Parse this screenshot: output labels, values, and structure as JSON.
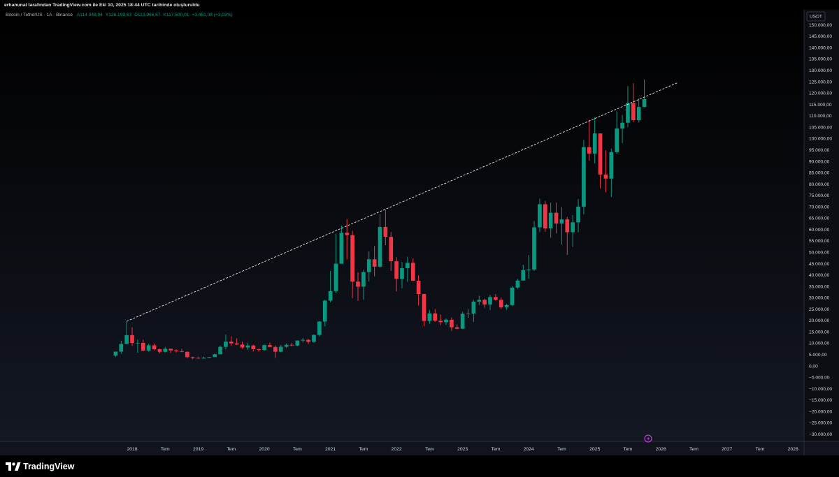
{
  "header": "erhanunal tarafından TradingView.com ile Eki 10, 2025 18:44 UTC tarihinde oluşturuldu",
  "footer": "TradingView",
  "chart_data": {
    "type": "candlestick",
    "title": "Bitcoin / TetherUS · 1A · Binance",
    "legend_values": [
      "A114.048,94",
      "Y126.199,63",
      "D113.966,67",
      "K117.500,01",
      "+3.451,08 (+3,03%)"
    ],
    "currency": "USDT",
    "up_color": "#089981",
    "down_color": "#f23645",
    "grid": false,
    "x": [
      "2017-10",
      "2017-11",
      "2017-12",
      "2018-01",
      "2018-02",
      "2018-03",
      "2018-04",
      "2018-05",
      "2018-06",
      "2018-07",
      "2018-08",
      "2018-09",
      "2018-10",
      "2018-11",
      "2018-12",
      "2019-01",
      "2019-02",
      "2019-03",
      "2019-04",
      "2019-05",
      "2019-06",
      "2019-07",
      "2019-08",
      "2019-09",
      "2019-10",
      "2019-11",
      "2019-12",
      "2020-01",
      "2020-02",
      "2020-03",
      "2020-04",
      "2020-05",
      "2020-06",
      "2020-07",
      "2020-08",
      "2020-09",
      "2020-10",
      "2020-11",
      "2020-12",
      "2021-01",
      "2021-02",
      "2021-03",
      "2021-04",
      "2021-05",
      "2021-06",
      "2021-07",
      "2021-08",
      "2021-09",
      "2021-10",
      "2021-11",
      "2021-12",
      "2022-01",
      "2022-02",
      "2022-03",
      "2022-04",
      "2022-05",
      "2022-06",
      "2022-07",
      "2022-08",
      "2022-09",
      "2022-10",
      "2022-11",
      "2022-12",
      "2023-01",
      "2023-02",
      "2023-03",
      "2023-04",
      "2023-05",
      "2023-06",
      "2023-07",
      "2023-08",
      "2023-09",
      "2023-10",
      "2023-11",
      "2023-12",
      "2024-01",
      "2024-02",
      "2024-03",
      "2024-04",
      "2024-05",
      "2024-06",
      "2024-07",
      "2024-08",
      "2024-09",
      "2024-10",
      "2024-11",
      "2024-12",
      "2025-01",
      "2025-02",
      "2025-03",
      "2025-04",
      "2025-05",
      "2025-06",
      "2025-07",
      "2025-08",
      "2025-09",
      "2025-10"
    ],
    "open": [
      4690,
      6463,
      9838,
      13716,
      10285,
      10326,
      6922,
      9246,
      7485,
      6391,
      7735,
      7011,
      6626,
      6369,
      4041,
      3701,
      3434,
      3815,
      4103,
      5321,
      8574,
      10854,
      10082,
      9592,
      8284,
      9152,
      7546,
      7195,
      9352,
      8523,
      6412,
      8620,
      9448,
      9138,
      11335,
      11650,
      10776,
      13791,
      19695,
      28923,
      33092,
      45134,
      58739,
      57697,
      37253,
      35045,
      41461,
      47100,
      43820,
      61300,
      56950,
      46216,
      38466,
      43160,
      45510,
      37630,
      31801,
      19942,
      23296,
      20048,
      19422,
      20490,
      17165,
      16541,
      23125,
      23141,
      28465,
      29233,
      27210,
      30472,
      29232,
      25941,
      26962,
      34640,
      37723,
      42283,
      42580,
      61131,
      71280,
      60672,
      67540,
      62772,
      64629,
      58974,
      63327,
      70216,
      96408,
      93577,
      102430,
      84350,
      82550,
      94172,
      104591,
      107135,
      115764,
      108246,
      114048.94
    ],
    "high": [
      6470,
      11300,
      19798,
      17176,
      11786,
      11700,
      9759,
      10020,
      7754,
      8491,
      7750,
      7410,
      7680,
      6589,
      4312,
      4069,
      4198,
      4140,
      5600,
      9074,
      13970,
      13200,
      12330,
      10905,
      10370,
      9505,
      7750,
      9578,
      10500,
      9189,
      9460,
      10067,
      10380,
      11444,
      12468,
      12050,
      14100,
      19863,
      29300,
      41950,
      58352,
      61844,
      64854,
      59600,
      41330,
      42448,
      50500,
      52920,
      67000,
      69000,
      59053,
      47990,
      45821,
      48189,
      47444,
      40023,
      31982,
      24668,
      25211,
      22800,
      21085,
      21480,
      18387,
      23960,
      25250,
      29185,
      31000,
      29820,
      31432,
      31804,
      30244,
      27483,
      35280,
      38450,
      44700,
      48969,
      63913,
      73777,
      72797,
      71979,
      71959,
      70079,
      65660,
      66498,
      73620,
      99588,
      108353,
      109588,
      102500,
      95000,
      95758,
      111980,
      110530,
      123218,
      124474,
      117900,
      126199.63
    ],
    "low": [
      4110,
      5500,
      9750,
      9035,
      6000,
      6600,
      6430,
      7032,
      5750,
      6070,
      5880,
      6100,
      6205,
      3652,
      3156,
      3349,
      3373,
      3690,
      4067,
      5321,
      7444,
      9071,
      9320,
      7710,
      7300,
      6515,
      6435,
      6871,
      8445,
      3782,
      6150,
      8117,
      8833,
      8893,
      10518,
      9825,
      10375,
      13195,
      17572,
      28130,
      32296,
      45000,
      47044,
      30000,
      28805,
      29278,
      37332,
      39600,
      43283,
      53256,
      42000,
      32917,
      34322,
      37155,
      37578,
      26700,
      17622,
      18781,
      19520,
      18125,
      18190,
      15476,
      16256,
      16500,
      21351,
      19549,
      26942,
      25811,
      24800,
      28861,
      25166,
      24901,
      26538,
      34097,
      37618,
      38555,
      41884,
      59005,
      59120,
      56552,
      58402,
      53485,
      49000,
      52550,
      58946,
      66835,
      90500,
      89256,
      78258,
      76606,
      74508,
      93377,
      98200,
      105100,
      107350,
      107255,
      113966.67
    ],
    "close": [
      6463,
      9838,
      13716,
      10285,
      10326,
      6923,
      9246,
      7485,
      6391,
      7730,
      7011,
      6626,
      6371,
      4041,
      3702,
      3434,
      3814,
      4103,
      5321,
      8574,
      10854,
      10082,
      9592,
      8284,
      9152,
      7546,
      7196,
      9352,
      8523,
      6410,
      8620,
      9448,
      9138,
      11335,
      11650,
      10776,
      13791,
      19695,
      28923,
      33092,
      45135,
      58740,
      57694,
      37253,
      35045,
      41461,
      47100,
      43824,
      61300,
      56950,
      46216,
      38466,
      43160,
      45510,
      37630,
      31801,
      19942,
      23293,
      20050,
      19423,
      20490,
      17164,
      16542,
      23125,
      23141,
      28465,
      29233,
      27210,
      30472,
      29232,
      25941,
      26963,
      34639,
      37723,
      42283,
      42580,
      61130,
      71280,
      60672,
      67540,
      62772,
      64628,
      58974,
      63328,
      70215,
      96408,
      93577,
      102429,
      84350,
      82550,
      94172,
      104591,
      107135,
      115764,
      108246,
      114048.94,
      117500.01
    ],
    "trendline": {
      "x": [
        "2017-12",
        "2026-04"
      ],
      "y": [
        19798,
        124700
      ],
      "color": "#ffffff"
    },
    "xlim": [
      "2016-01",
      "2028-03"
    ],
    "xticks": [
      {
        "value": "2018-01",
        "label": "2018"
      },
      {
        "value": "2018-07",
        "label": "Tem"
      },
      {
        "value": "2019-01",
        "label": "2019"
      },
      {
        "value": "2019-07",
        "label": "Tem"
      },
      {
        "value": "2020-01",
        "label": "2020"
      },
      {
        "value": "2020-07",
        "label": "Tem"
      },
      {
        "value": "2021-01",
        "label": "2021"
      },
      {
        "value": "2021-07",
        "label": "Tem"
      },
      {
        "value": "2022-01",
        "label": "2022"
      },
      {
        "value": "2022-07",
        "label": "Tem"
      },
      {
        "value": "2023-01",
        "label": "2023"
      },
      {
        "value": "2023-07",
        "label": "Tem"
      },
      {
        "value": "2024-01",
        "label": "2024"
      },
      {
        "value": "2024-07",
        "label": "Tem"
      },
      {
        "value": "2025-01",
        "label": "2025"
      },
      {
        "value": "2025-07",
        "label": "Tem"
      },
      {
        "value": "2026-01",
        "label": "2026"
      },
      {
        "value": "2026-07",
        "label": "Tem"
      },
      {
        "value": "2027-01",
        "label": "2027"
      },
      {
        "value": "2027-07",
        "label": "Tem"
      },
      {
        "value": "2028-01",
        "label": "2028"
      }
    ],
    "ylim": [
      -33000,
      156800
    ],
    "yticks": [
      {
        "value": -30000,
        "label": "−30.000,00"
      },
      {
        "value": -25000,
        "label": "−25.000,00"
      },
      {
        "value": -20000,
        "label": "−20.000,00"
      },
      {
        "value": -15000,
        "label": "−15.000,00"
      },
      {
        "value": -10000,
        "label": "−10.000,00"
      },
      {
        "value": -5000,
        "label": "−5.000,00"
      },
      {
        "value": 0,
        "label": "0,00"
      },
      {
        "value": 5000,
        "label": "5.000,00"
      },
      {
        "value": 10000,
        "label": "10.000,00"
      },
      {
        "value": 15000,
        "label": "15.000,00"
      },
      {
        "value": 20000,
        "label": "20.000,00"
      },
      {
        "value": 25000,
        "label": "25.000,00"
      },
      {
        "value": 30000,
        "label": "30.000,00"
      },
      {
        "value": 35000,
        "label": "35.000,00"
      },
      {
        "value": 40000,
        "label": "40.000,00"
      },
      {
        "value": 45000,
        "label": "45.000,00"
      },
      {
        "value": 50000,
        "label": "50.000,00"
      },
      {
        "value": 55000,
        "label": "55.000,00"
      },
      {
        "value": 60000,
        "label": "60.000,00"
      },
      {
        "value": 65000,
        "label": "65.000,00"
      },
      {
        "value": 70000,
        "label": "70.000,00"
      },
      {
        "value": 75000,
        "label": "75.000,00"
      },
      {
        "value": 80000,
        "label": "80.000,00"
      },
      {
        "value": 85000,
        "label": "85.000,00"
      },
      {
        "value": 90000,
        "label": "90.000,00"
      },
      {
        "value": 95000,
        "label": "95.000,00"
      },
      {
        "value": 100000,
        "label": "100.000,00"
      },
      {
        "value": 105000,
        "label": "105.000,00"
      },
      {
        "value": 110000,
        "label": "110.000,00"
      },
      {
        "value": 115000,
        "label": "115.000,00"
      },
      {
        "value": 120000,
        "label": "120.000,00"
      },
      {
        "value": 125000,
        "label": "125.000,00"
      },
      {
        "value": 130000,
        "label": "130.000,00"
      },
      {
        "value": 135000,
        "label": "135.000,00"
      },
      {
        "value": 140000,
        "label": "140.000,00"
      },
      {
        "value": 145000,
        "label": "145.000,00"
      },
      {
        "value": 150000,
        "label": "150.000,00"
      }
    ]
  }
}
